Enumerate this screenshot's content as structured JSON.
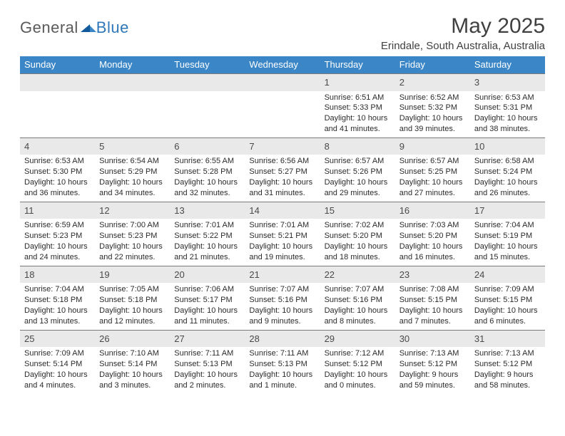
{
  "brand": {
    "part1": "General",
    "part2": "Blue"
  },
  "title": "May 2025",
  "location": "Erindale, South Australia, Australia",
  "colors": {
    "header_bg": "#3b86c7",
    "header_fg": "#ffffff",
    "daynum_bg": "#e9e9e9",
    "daynum_border": "#7a7a7a",
    "text": "#2b2b2b",
    "brand_gray": "#5a5a5a",
    "brand_blue": "#2e77b8"
  },
  "day_labels": [
    "Sunday",
    "Monday",
    "Tuesday",
    "Wednesday",
    "Thursday",
    "Friday",
    "Saturday"
  ],
  "weeks": [
    [
      {
        "day": "",
        "sunrise": "",
        "sunset": "",
        "daylight": ""
      },
      {
        "day": "",
        "sunrise": "",
        "sunset": "",
        "daylight": ""
      },
      {
        "day": "",
        "sunrise": "",
        "sunset": "",
        "daylight": ""
      },
      {
        "day": "",
        "sunrise": "",
        "sunset": "",
        "daylight": ""
      },
      {
        "day": "1",
        "sunrise": "Sunrise: 6:51 AM",
        "sunset": "Sunset: 5:33 PM",
        "daylight": "Daylight: 10 hours and 41 minutes."
      },
      {
        "day": "2",
        "sunrise": "Sunrise: 6:52 AM",
        "sunset": "Sunset: 5:32 PM",
        "daylight": "Daylight: 10 hours and 39 minutes."
      },
      {
        "day": "3",
        "sunrise": "Sunrise: 6:53 AM",
        "sunset": "Sunset: 5:31 PM",
        "daylight": "Daylight: 10 hours and 38 minutes."
      }
    ],
    [
      {
        "day": "4",
        "sunrise": "Sunrise: 6:53 AM",
        "sunset": "Sunset: 5:30 PM",
        "daylight": "Daylight: 10 hours and 36 minutes."
      },
      {
        "day": "5",
        "sunrise": "Sunrise: 6:54 AM",
        "sunset": "Sunset: 5:29 PM",
        "daylight": "Daylight: 10 hours and 34 minutes."
      },
      {
        "day": "6",
        "sunrise": "Sunrise: 6:55 AM",
        "sunset": "Sunset: 5:28 PM",
        "daylight": "Daylight: 10 hours and 32 minutes."
      },
      {
        "day": "7",
        "sunrise": "Sunrise: 6:56 AM",
        "sunset": "Sunset: 5:27 PM",
        "daylight": "Daylight: 10 hours and 31 minutes."
      },
      {
        "day": "8",
        "sunrise": "Sunrise: 6:57 AM",
        "sunset": "Sunset: 5:26 PM",
        "daylight": "Daylight: 10 hours and 29 minutes."
      },
      {
        "day": "9",
        "sunrise": "Sunrise: 6:57 AM",
        "sunset": "Sunset: 5:25 PM",
        "daylight": "Daylight: 10 hours and 27 minutes."
      },
      {
        "day": "10",
        "sunrise": "Sunrise: 6:58 AM",
        "sunset": "Sunset: 5:24 PM",
        "daylight": "Daylight: 10 hours and 26 minutes."
      }
    ],
    [
      {
        "day": "11",
        "sunrise": "Sunrise: 6:59 AM",
        "sunset": "Sunset: 5:23 PM",
        "daylight": "Daylight: 10 hours and 24 minutes."
      },
      {
        "day": "12",
        "sunrise": "Sunrise: 7:00 AM",
        "sunset": "Sunset: 5:23 PM",
        "daylight": "Daylight: 10 hours and 22 minutes."
      },
      {
        "day": "13",
        "sunrise": "Sunrise: 7:01 AM",
        "sunset": "Sunset: 5:22 PM",
        "daylight": "Daylight: 10 hours and 21 minutes."
      },
      {
        "day": "14",
        "sunrise": "Sunrise: 7:01 AM",
        "sunset": "Sunset: 5:21 PM",
        "daylight": "Daylight: 10 hours and 19 minutes."
      },
      {
        "day": "15",
        "sunrise": "Sunrise: 7:02 AM",
        "sunset": "Sunset: 5:20 PM",
        "daylight": "Daylight: 10 hours and 18 minutes."
      },
      {
        "day": "16",
        "sunrise": "Sunrise: 7:03 AM",
        "sunset": "Sunset: 5:20 PM",
        "daylight": "Daylight: 10 hours and 16 minutes."
      },
      {
        "day": "17",
        "sunrise": "Sunrise: 7:04 AM",
        "sunset": "Sunset: 5:19 PM",
        "daylight": "Daylight: 10 hours and 15 minutes."
      }
    ],
    [
      {
        "day": "18",
        "sunrise": "Sunrise: 7:04 AM",
        "sunset": "Sunset: 5:18 PM",
        "daylight": "Daylight: 10 hours and 13 minutes."
      },
      {
        "day": "19",
        "sunrise": "Sunrise: 7:05 AM",
        "sunset": "Sunset: 5:18 PM",
        "daylight": "Daylight: 10 hours and 12 minutes."
      },
      {
        "day": "20",
        "sunrise": "Sunrise: 7:06 AM",
        "sunset": "Sunset: 5:17 PM",
        "daylight": "Daylight: 10 hours and 11 minutes."
      },
      {
        "day": "21",
        "sunrise": "Sunrise: 7:07 AM",
        "sunset": "Sunset: 5:16 PM",
        "daylight": "Daylight: 10 hours and 9 minutes."
      },
      {
        "day": "22",
        "sunrise": "Sunrise: 7:07 AM",
        "sunset": "Sunset: 5:16 PM",
        "daylight": "Daylight: 10 hours and 8 minutes."
      },
      {
        "day": "23",
        "sunrise": "Sunrise: 7:08 AM",
        "sunset": "Sunset: 5:15 PM",
        "daylight": "Daylight: 10 hours and 7 minutes."
      },
      {
        "day": "24",
        "sunrise": "Sunrise: 7:09 AM",
        "sunset": "Sunset: 5:15 PM",
        "daylight": "Daylight: 10 hours and 6 minutes."
      }
    ],
    [
      {
        "day": "25",
        "sunrise": "Sunrise: 7:09 AM",
        "sunset": "Sunset: 5:14 PM",
        "daylight": "Daylight: 10 hours and 4 minutes."
      },
      {
        "day": "26",
        "sunrise": "Sunrise: 7:10 AM",
        "sunset": "Sunset: 5:14 PM",
        "daylight": "Daylight: 10 hours and 3 minutes."
      },
      {
        "day": "27",
        "sunrise": "Sunrise: 7:11 AM",
        "sunset": "Sunset: 5:13 PM",
        "daylight": "Daylight: 10 hours and 2 minutes."
      },
      {
        "day": "28",
        "sunrise": "Sunrise: 7:11 AM",
        "sunset": "Sunset: 5:13 PM",
        "daylight": "Daylight: 10 hours and 1 minute."
      },
      {
        "day": "29",
        "sunrise": "Sunrise: 7:12 AM",
        "sunset": "Sunset: 5:12 PM",
        "daylight": "Daylight: 10 hours and 0 minutes."
      },
      {
        "day": "30",
        "sunrise": "Sunrise: 7:13 AM",
        "sunset": "Sunset: 5:12 PM",
        "daylight": "Daylight: 9 hours and 59 minutes."
      },
      {
        "day": "31",
        "sunrise": "Sunrise: 7:13 AM",
        "sunset": "Sunset: 5:12 PM",
        "daylight": "Daylight: 9 hours and 58 minutes."
      }
    ]
  ]
}
